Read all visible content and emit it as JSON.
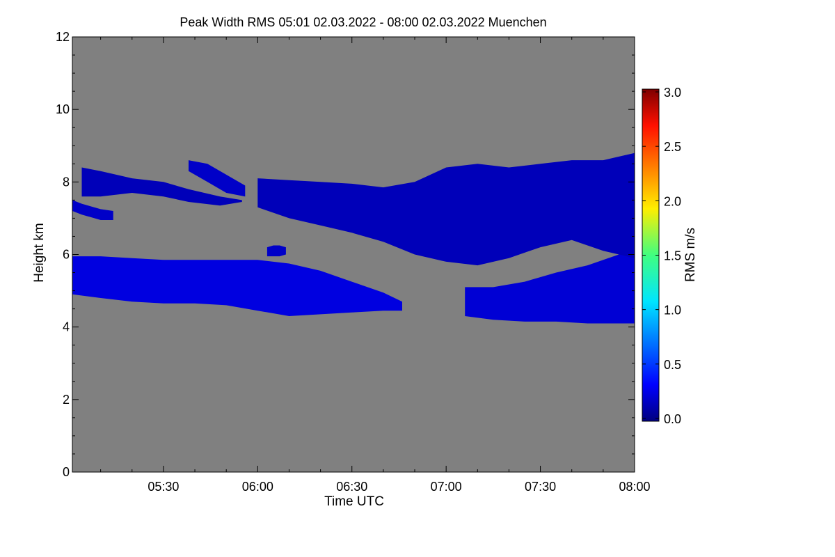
{
  "chart_data": {
    "type": "heatmap",
    "title": "Peak Width RMS   05:01 02.03.2022 - 08:00 02.03.2022 Muenchen",
    "xlabel": "Time UTC",
    "ylabel": "Height km",
    "x_range": [
      "05:01",
      "08:00"
    ],
    "x_ticks": [
      "05:30",
      "06:00",
      "06:30",
      "07:00",
      "07:30",
      "08:00"
    ],
    "ylim": [
      0,
      12
    ],
    "y_ticks": [
      "0",
      "2",
      "4",
      "6",
      "8",
      "10",
      "12"
    ],
    "colorbar": {
      "label": "RMS m/s",
      "range": [
        0.0,
        3.0
      ],
      "ticks": [
        "0.0",
        "0.5",
        "1.0",
        "1.5",
        "2.0",
        "2.5",
        "3.0"
      ]
    },
    "background_color": "#808080",
    "colors": {
      "plot_background": "#808080",
      "low_value": "#0000c8",
      "mid_value": "#2a3cff"
    },
    "layers": [
      {
        "level_rms": 0.25,
        "x": [
          "05:01",
          "05:10",
          "05:20",
          "05:30",
          "05:40",
          "05:50",
          "06:00",
          "06:10",
          "06:20",
          "06:30",
          "06:40",
          "06:46"
        ],
        "top_km": [
          5.95,
          5.95,
          5.9,
          5.85,
          5.85,
          5.85,
          5.85,
          5.75,
          5.55,
          5.25,
          4.95,
          4.7
        ],
        "bottom_km": [
          4.9,
          4.8,
          4.7,
          4.65,
          4.65,
          4.6,
          4.45,
          4.3,
          4.35,
          4.4,
          4.45,
          4.45
        ]
      },
      {
        "level_rms": 0.22,
        "x": [
          "07:06",
          "07:15",
          "07:25",
          "07:35",
          "07:45",
          "07:55",
          "08:00"
        ],
        "top_km": [
          5.1,
          5.1,
          5.25,
          5.5,
          5.7,
          6.0,
          6.2
        ],
        "bottom_km": [
          4.3,
          4.2,
          4.15,
          4.15,
          4.1,
          4.1,
          4.1
        ]
      },
      {
        "level_rms": 0.15,
        "x": [
          "05:04",
          "05:10",
          "05:20",
          "05:30",
          "05:38",
          "05:48",
          "05:55"
        ],
        "top_km": [
          8.4,
          8.3,
          8.1,
          8.0,
          7.8,
          7.6,
          7.5
        ],
        "bottom_km": [
          7.6,
          7.6,
          7.7,
          7.6,
          7.45,
          7.35,
          7.45
        ]
      },
      {
        "level_rms": 0.15,
        "x": [
          "06:00",
          "06:10",
          "06:20",
          "06:30",
          "06:40",
          "06:50",
          "07:00",
          "07:10",
          "07:20",
          "07:30",
          "07:40",
          "07:50",
          "08:00"
        ],
        "top_km": [
          8.1,
          8.05,
          8.0,
          7.95,
          7.85,
          8.0,
          8.4,
          8.5,
          8.4,
          8.5,
          8.6,
          8.6,
          8.8
        ],
        "bottom_km": [
          7.3,
          7.0,
          6.8,
          6.6,
          6.35,
          6.0,
          5.8,
          5.7,
          5.9,
          6.2,
          6.4,
          6.1,
          5.9
        ]
      }
    ],
    "features": [
      {
        "x": [
          "05:01",
          "05:04",
          "05:10",
          "05:14"
        ],
        "top_km": [
          7.5,
          7.4,
          7.25,
          7.2
        ],
        "bottom_km": [
          7.2,
          7.1,
          6.95,
          6.95
        ]
      },
      {
        "x": [
          "06:03",
          "06:05",
          "06:07",
          "06:09"
        ],
        "top_km": [
          6.2,
          6.25,
          6.25,
          6.2
        ],
        "bottom_km": [
          5.95,
          5.95,
          5.95,
          6.0
        ]
      },
      {
        "x": [
          "05:38",
          "05:44",
          "05:50",
          "05:56"
        ],
        "top_km": [
          8.6,
          8.5,
          8.2,
          7.9
        ],
        "bottom_km": [
          8.3,
          8.0,
          7.7,
          7.6
        ]
      }
    ]
  }
}
